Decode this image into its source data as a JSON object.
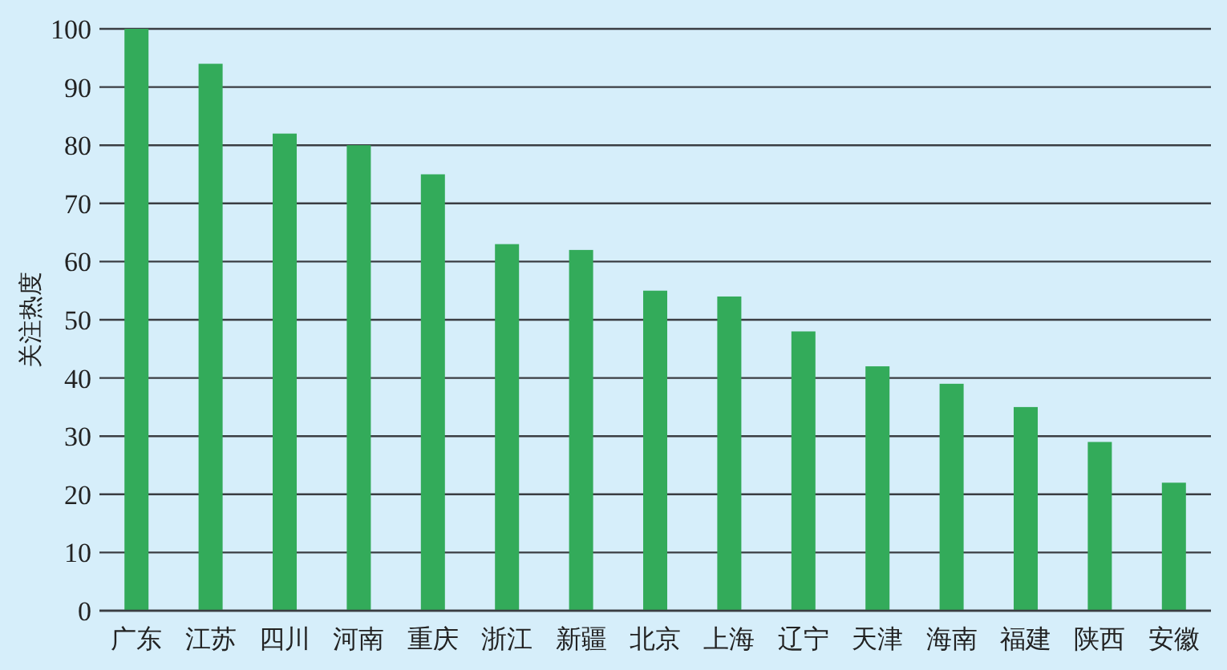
{
  "chart_data": {
    "type": "bar",
    "ylabel": "关注热度",
    "categories": [
      "广东",
      "江苏",
      "四川",
      "河南",
      "重庆",
      "浙江",
      "新疆",
      "北京",
      "上海",
      "辽宁",
      "天津",
      "海南",
      "福建",
      "陕西",
      "安徽"
    ],
    "values": [
      100,
      94,
      82,
      80,
      75,
      63,
      62,
      55,
      54,
      48,
      42,
      39,
      35,
      29,
      22
    ],
    "color": "#33ab5a",
    "ylim": [
      0,
      100
    ],
    "yticks": [
      0,
      10,
      20,
      30,
      40,
      50,
      60,
      70,
      80,
      90,
      100
    ],
    "grid": "y"
  }
}
